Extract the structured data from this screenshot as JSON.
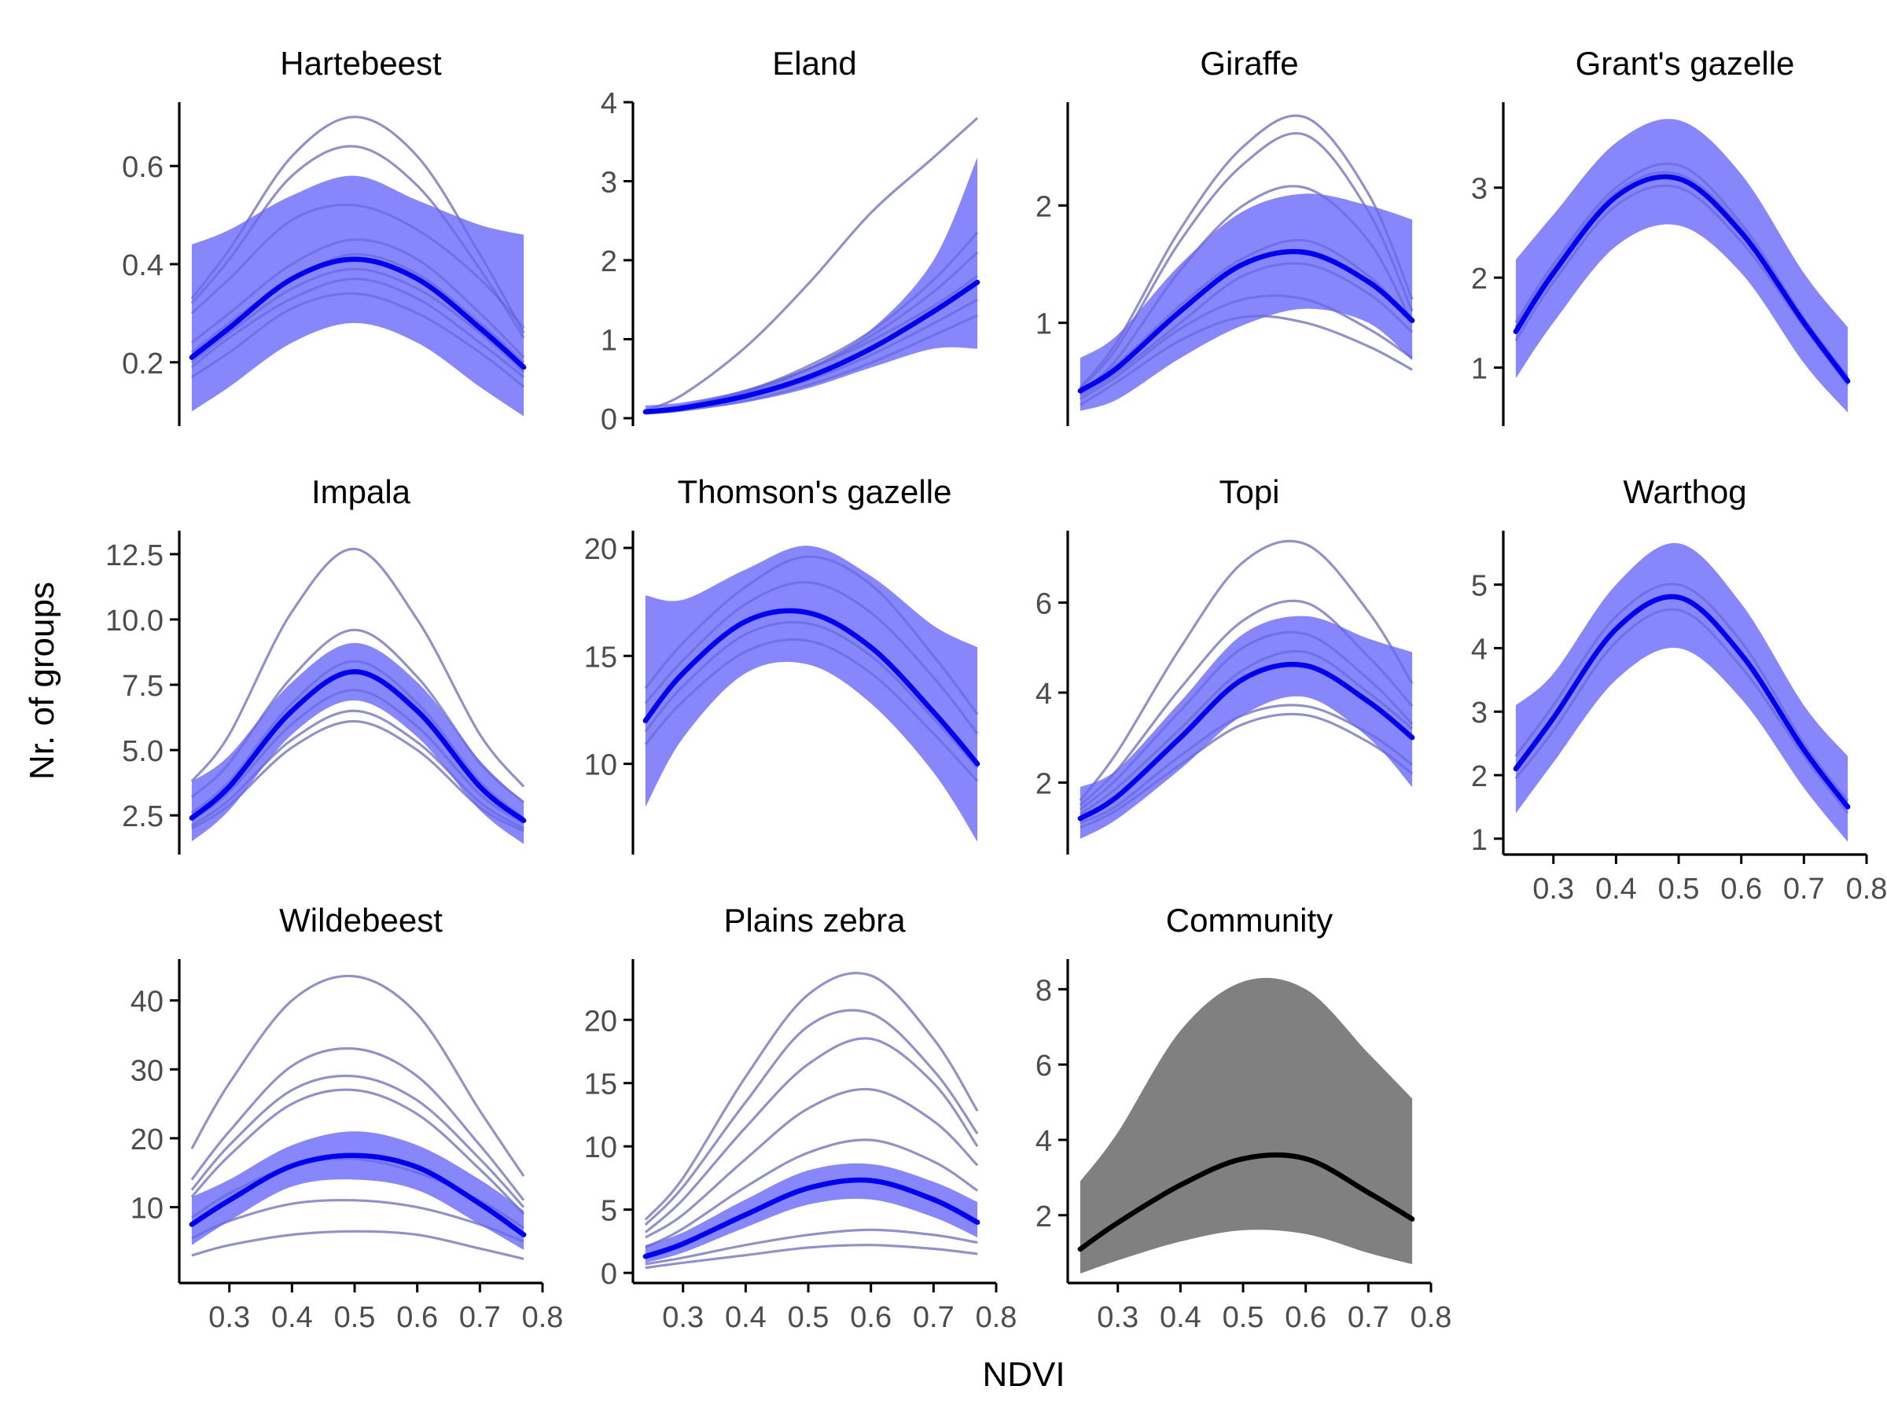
{
  "figure": {
    "xlabel": "NDVI",
    "ylabel": "Nr. of groups"
  },
  "colors": {
    "band": "#7d7dfb",
    "mean_line": "#0000ee",
    "grey_lines": "#bdbdbd",
    "community_band": "#808080",
    "community_line": "#000000",
    "axis": "#000000",
    "tick_text": "#4d4d4d"
  },
  "chart_data": [
    {
      "type": "line",
      "title": "Hartebeest",
      "style": "blue",
      "x": [
        0.24,
        0.3,
        0.4,
        0.5,
        0.6,
        0.7,
        0.77
      ],
      "xlim": [
        0.22,
        0.8
      ],
      "ylim": [
        0.07,
        0.73
      ],
      "yticks": [
        0.2,
        0.4,
        0.6
      ],
      "xaxis": false,
      "mean": [
        0.21,
        0.27,
        0.37,
        0.41,
        0.37,
        0.27,
        0.19
      ],
      "lower": [
        0.1,
        0.15,
        0.24,
        0.28,
        0.24,
        0.15,
        0.09
      ],
      "upper": [
        0.44,
        0.47,
        0.54,
        0.58,
        0.53,
        0.48,
        0.46
      ],
      "draws": [
        [
          0.33,
          0.43,
          0.62,
          0.7,
          0.62,
          0.42,
          0.26
        ],
        [
          0.32,
          0.41,
          0.58,
          0.64,
          0.56,
          0.39,
          0.25
        ],
        [
          0.3,
          0.37,
          0.49,
          0.52,
          0.47,
          0.37,
          0.27
        ],
        [
          0.24,
          0.3,
          0.4,
          0.45,
          0.41,
          0.3,
          0.21
        ],
        [
          0.2,
          0.26,
          0.35,
          0.39,
          0.35,
          0.26,
          0.18
        ],
        [
          0.17,
          0.22,
          0.31,
          0.34,
          0.3,
          0.22,
          0.15
        ],
        [
          0.22,
          0.28,
          0.37,
          0.42,
          0.38,
          0.28,
          0.2
        ],
        [
          0.19,
          0.25,
          0.33,
          0.37,
          0.33,
          0.24,
          0.17
        ]
      ]
    },
    {
      "type": "line",
      "title": "Eland",
      "style": "blue",
      "x": [
        0.24,
        0.3,
        0.4,
        0.5,
        0.6,
        0.7,
        0.77
      ],
      "xlim": [
        0.22,
        0.8
      ],
      "ylim": [
        -0.1,
        4.0
      ],
      "yticks": [
        0,
        1,
        2,
        3,
        4
      ],
      "xaxis": false,
      "mean": [
        0.08,
        0.13,
        0.28,
        0.52,
        0.88,
        1.35,
        1.72
      ],
      "lower": [
        0.05,
        0.09,
        0.2,
        0.38,
        0.64,
        0.88,
        0.88
      ],
      "upper": [
        0.16,
        0.2,
        0.36,
        0.64,
        1.12,
        2.0,
        3.3
      ],
      "draws": [
        [
          0.1,
          0.3,
          0.9,
          1.7,
          2.6,
          3.3,
          3.8
        ],
        [
          0.08,
          0.14,
          0.32,
          0.62,
          1.04,
          1.6,
          2.1
        ],
        [
          0.07,
          0.12,
          0.26,
          0.48,
          0.8,
          1.2,
          1.5
        ],
        [
          0.08,
          0.15,
          0.34,
          0.66,
          1.1,
          1.75,
          2.35
        ],
        [
          0.06,
          0.1,
          0.22,
          0.42,
          0.7,
          1.05,
          1.3
        ],
        [
          0.09,
          0.16,
          0.35,
          0.62,
          0.98,
          1.42,
          1.8
        ]
      ]
    },
    {
      "type": "line",
      "title": "Giraffe",
      "style": "blue",
      "x": [
        0.24,
        0.3,
        0.4,
        0.5,
        0.6,
        0.7,
        0.77
      ],
      "xlim": [
        0.22,
        0.8
      ],
      "ylim": [
        0.12,
        2.88
      ],
      "yticks": [
        1,
        2
      ],
      "xaxis": false,
      "mean": [
        0.42,
        0.62,
        1.1,
        1.5,
        1.6,
        1.35,
        1.02
      ],
      "lower": [
        0.25,
        0.35,
        0.7,
        0.98,
        1.12,
        1.0,
        0.68
      ],
      "upper": [
        0.7,
        0.9,
        1.5,
        1.95,
        2.1,
        2.0,
        1.88
      ],
      "draws": [
        [
          0.45,
          0.85,
          1.8,
          2.5,
          2.75,
          2.1,
          1.2
        ],
        [
          0.44,
          0.8,
          1.7,
          2.35,
          2.6,
          1.95,
          1.1
        ],
        [
          0.4,
          0.7,
          1.45,
          2.0,
          2.15,
          1.7,
          1.0
        ],
        [
          0.35,
          0.55,
          0.95,
          1.2,
          1.2,
          0.95,
          0.7
        ],
        [
          0.3,
          0.5,
          0.85,
          1.05,
          1.0,
          0.8,
          0.6
        ],
        [
          0.42,
          0.65,
          1.15,
          1.55,
          1.7,
          1.4,
          1.0
        ],
        [
          0.38,
          0.58,
          1.0,
          1.4,
          1.5,
          1.25,
          0.92
        ]
      ]
    },
    {
      "type": "line",
      "title": "Grant's gazelle",
      "style": "blue",
      "x": [
        0.24,
        0.3,
        0.4,
        0.5,
        0.6,
        0.7,
        0.77
      ],
      "xlim": [
        0.22,
        0.8
      ],
      "ylim": [
        0.35,
        3.95
      ],
      "yticks": [
        1,
        2,
        3
      ],
      "xaxis": false,
      "mean": [
        1.4,
        2.05,
        2.9,
        3.1,
        2.5,
        1.5,
        0.85
      ],
      "lower": [
        0.88,
        1.5,
        2.35,
        2.58,
        2.05,
        1.05,
        0.5
      ],
      "upper": [
        2.2,
        2.7,
        3.5,
        3.75,
        3.15,
        2.05,
        1.45
      ],
      "draws": [
        [
          1.5,
          2.15,
          3.0,
          3.25,
          2.6,
          1.55,
          0.9
        ],
        [
          1.3,
          1.95,
          2.8,
          3.0,
          2.4,
          1.45,
          0.8
        ],
        [
          1.45,
          2.1,
          2.95,
          3.15,
          2.55,
          1.5,
          0.85
        ]
      ]
    },
    {
      "type": "line",
      "title": "Impala",
      "style": "blue",
      "x": [
        0.24,
        0.3,
        0.4,
        0.5,
        0.6,
        0.7,
        0.77
      ],
      "xlim": [
        0.22,
        0.8
      ],
      "ylim": [
        1.0,
        13.4
      ],
      "yticks": [
        2.5,
        5.0,
        7.5,
        10.0,
        12.5
      ],
      "xaxis": false,
      "mean": [
        2.4,
        3.6,
        6.5,
        8.0,
        6.5,
        3.6,
        2.3
      ],
      "lower": [
        1.5,
        2.7,
        5.6,
        6.9,
        5.5,
        2.7,
        1.4
      ],
      "upper": [
        3.8,
        4.8,
        7.6,
        9.1,
        7.6,
        4.6,
        3.0
      ],
      "draws": [
        [
          3.8,
          5.6,
          10.3,
          12.7,
          10.0,
          5.6,
          3.6
        ],
        [
          3.2,
          4.5,
          7.8,
          9.6,
          7.8,
          4.5,
          3.0
        ],
        [
          2.6,
          3.8,
          6.8,
          8.4,
          6.8,
          3.8,
          2.4
        ],
        [
          2.1,
          3.1,
          5.4,
          6.5,
          5.3,
          3.0,
          2.0
        ],
        [
          2.0,
          2.9,
          5.1,
          6.1,
          5.0,
          2.8,
          1.9
        ],
        [
          2.3,
          3.4,
          6.0,
          7.3,
          5.9,
          3.3,
          2.2
        ]
      ]
    },
    {
      "type": "line",
      "title": "Thomson's gazelle",
      "style": "blue",
      "x": [
        0.24,
        0.3,
        0.4,
        0.5,
        0.6,
        0.7,
        0.77
      ],
      "xlim": [
        0.22,
        0.8
      ],
      "ylim": [
        5.8,
        20.8
      ],
      "yticks": [
        10,
        15,
        20
      ],
      "xaxis": false,
      "mean": [
        12.0,
        14.2,
        16.6,
        17.0,
        15.4,
        12.4,
        10.0
      ],
      "lower": [
        8.0,
        11.2,
        14.2,
        14.6,
        12.8,
        9.6,
        6.4
      ],
      "upper": [
        17.8,
        17.6,
        19.0,
        20.1,
        18.7,
        16.4,
        15.4
      ],
      "draws": [
        [
          13.5,
          15.6,
          18.2,
          19.6,
          18.3,
          15.0,
          12.3
        ],
        [
          12.8,
          14.8,
          17.4,
          18.4,
          17.0,
          14.0,
          11.4
        ],
        [
          11.5,
          13.6,
          16.0,
          16.5,
          15.0,
          12.1,
          9.8
        ],
        [
          10.9,
          12.9,
          15.2,
          15.7,
          14.2,
          11.4,
          9.2
        ]
      ]
    },
    {
      "type": "line",
      "title": "Topi",
      "style": "blue",
      "x": [
        0.24,
        0.3,
        0.4,
        0.5,
        0.6,
        0.7,
        0.77
      ],
      "xlim": [
        0.22,
        0.8
      ],
      "ylim": [
        0.4,
        7.6
      ],
      "yticks": [
        2,
        4,
        6
      ],
      "xaxis": false,
      "mean": [
        1.2,
        1.7,
        3.0,
        4.3,
        4.6,
        3.8,
        3.0
      ],
      "lower": [
        0.75,
        1.2,
        2.3,
        3.5,
        3.9,
        3.0,
        1.9
      ],
      "upper": [
        1.9,
        2.3,
        3.8,
        5.3,
        5.7,
        5.2,
        4.9
      ],
      "draws": [
        [
          1.6,
          2.7,
          5.0,
          6.9,
          7.3,
          5.8,
          4.2
        ],
        [
          1.5,
          2.3,
          4.1,
          5.6,
          6.0,
          4.8,
          3.7
        ],
        [
          1.4,
          2.1,
          3.6,
          5.0,
          5.3,
          4.3,
          3.3
        ],
        [
          1.1,
          1.5,
          2.6,
          3.5,
          3.7,
          3.1,
          2.4
        ],
        [
          1.0,
          1.4,
          2.4,
          3.3,
          3.5,
          2.9,
          2.2
        ],
        [
          1.3,
          1.9,
          3.2,
          4.5,
          4.9,
          4.0,
          3.2
        ]
      ]
    },
    {
      "type": "line",
      "title": "Warthog",
      "style": "blue",
      "x": [
        0.24,
        0.3,
        0.4,
        0.5,
        0.6,
        0.7,
        0.77
      ],
      "xlim": [
        0.22,
        0.8
      ],
      "ylim": [
        0.75,
        5.85
      ],
      "yticks": [
        1,
        2,
        3,
        4,
        5
      ],
      "xaxis": true,
      "xticks": [
        0.3,
        0.4,
        0.5,
        0.6,
        0.7,
        0.8
      ],
      "mean": [
        2.1,
        2.9,
        4.3,
        4.8,
        3.9,
        2.4,
        1.5
      ],
      "lower": [
        1.4,
        2.2,
        3.5,
        4.0,
        3.2,
        1.8,
        0.95
      ],
      "upper": [
        3.1,
        3.6,
        5.0,
        5.65,
        4.7,
        3.1,
        2.3
      ],
      "draws": [
        [
          2.3,
          3.1,
          4.5,
          5.0,
          4.1,
          2.5,
          1.6
        ],
        [
          1.95,
          2.7,
          4.1,
          4.6,
          3.7,
          2.3,
          1.4
        ]
      ]
    },
    {
      "type": "line",
      "title": "Wildebeest",
      "style": "blue",
      "x": [
        0.24,
        0.3,
        0.4,
        0.5,
        0.6,
        0.7,
        0.77
      ],
      "xlim": [
        0.22,
        0.8
      ],
      "ylim": [
        -1.0,
        46.0
      ],
      "yticks": [
        10,
        20,
        30,
        40
      ],
      "xaxis": true,
      "xticks": [
        0.3,
        0.4,
        0.5,
        0.6,
        0.7,
        0.8
      ],
      "mean": [
        7.5,
        11.0,
        16.0,
        17.5,
        15.8,
        10.5,
        6.0
      ],
      "lower": [
        4.5,
        8.0,
        13.0,
        14.0,
        12.5,
        7.5,
        3.8
      ],
      "upper": [
        11.5,
        14.0,
        19.0,
        21.0,
        19.0,
        14.0,
        9.5
      ],
      "draws": [
        [
          18.5,
          28.0,
          40.0,
          43.5,
          38.0,
          24.0,
          14.5
        ],
        [
          14.0,
          21.0,
          30.5,
          33.0,
          29.0,
          19.0,
          11.0
        ],
        [
          12.5,
          19.0,
          27.0,
          29.0,
          25.5,
          17.0,
          10.0
        ],
        [
          11.5,
          17.5,
          25.0,
          27.0,
          23.5,
          15.5,
          9.0
        ],
        [
          8.5,
          12.0,
          16.0,
          17.0,
          15.0,
          11.0,
          7.0
        ],
        [
          5.5,
          8.0,
          10.5,
          11.0,
          10.0,
          7.5,
          5.0
        ],
        [
          3.0,
          4.5,
          6.0,
          6.5,
          6.0,
          4.0,
          2.5
        ]
      ]
    },
    {
      "type": "line",
      "title": "Plains zebra",
      "style": "blue",
      "x": [
        0.24,
        0.3,
        0.4,
        0.5,
        0.6,
        0.7,
        0.77
      ],
      "xlim": [
        0.22,
        0.8
      ],
      "ylim": [
        -0.8,
        24.8
      ],
      "yticks": [
        0,
        5,
        10,
        15,
        20
      ],
      "xaxis": true,
      "xticks": [
        0.3,
        0.4,
        0.5,
        0.6,
        0.7,
        0.8
      ],
      "mean": [
        1.3,
        2.3,
        4.6,
        6.7,
        7.3,
        5.8,
        4.0
      ],
      "lower": [
        0.8,
        1.6,
        3.6,
        5.4,
        5.8,
        4.4,
        2.8
      ],
      "upper": [
        2.2,
        3.2,
        5.8,
        8.1,
        8.6,
        7.2,
        5.6
      ],
      "draws": [
        [
          4.2,
          7.5,
          15.5,
          22.0,
          23.5,
          18.5,
          12.8
        ],
        [
          3.8,
          6.8,
          13.5,
          19.5,
          20.5,
          16.0,
          11.0
        ],
        [
          3.2,
          5.8,
          11.5,
          16.5,
          18.5,
          15.0,
          10.0
        ],
        [
          2.8,
          4.6,
          9.0,
          13.0,
          14.5,
          12.0,
          8.5
        ],
        [
          2.0,
          3.5,
          6.8,
          9.5,
          10.5,
          8.8,
          6.5
        ],
        [
          0.7,
          1.2,
          2.2,
          3.0,
          3.4,
          3.0,
          2.4
        ],
        [
          0.4,
          0.8,
          1.4,
          2.0,
          2.2,
          1.9,
          1.5
        ]
      ]
    },
    {
      "type": "line",
      "title": "Community",
      "style": "grey",
      "x": [
        0.24,
        0.3,
        0.4,
        0.5,
        0.6,
        0.7,
        0.77
      ],
      "xlim": [
        0.22,
        0.8
      ],
      "ylim": [
        0.2,
        8.8
      ],
      "yticks": [
        2,
        4,
        6,
        8
      ],
      "xaxis": true,
      "xticks": [
        0.3,
        0.4,
        0.5,
        0.6,
        0.7,
        0.8
      ],
      "mean": [
        1.1,
        1.8,
        2.8,
        3.5,
        3.5,
        2.6,
        1.9
      ],
      "lower": [
        0.45,
        0.8,
        1.3,
        1.6,
        1.5,
        1.0,
        0.7
      ],
      "upper": [
        2.9,
        4.2,
        6.9,
        8.2,
        8.0,
        6.3,
        5.1
      ],
      "draws": []
    }
  ]
}
